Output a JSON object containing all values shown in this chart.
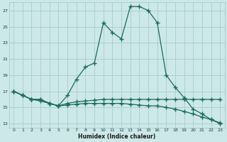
{
  "xlabel": "Humidex (Indice chaleur)",
  "bg_color": "#cce8e8",
  "grid_color": "#aacccc",
  "line_color": "#1a6b5a",
  "xlim": [
    -0.5,
    23.5
  ],
  "ylim": [
    12.5,
    28.0
  ],
  "yticks": [
    13,
    15,
    17,
    19,
    21,
    23,
    25,
    27
  ],
  "xticks": [
    0,
    1,
    2,
    3,
    4,
    5,
    6,
    7,
    8,
    9,
    10,
    11,
    12,
    13,
    14,
    15,
    16,
    17,
    18,
    19,
    20,
    21,
    22,
    23
  ],
  "line1_x": [
    0,
    1,
    2,
    3,
    4,
    5,
    6,
    7,
    8,
    9,
    10,
    11,
    12,
    13,
    14,
    15,
    16,
    17,
    18,
    19,
    20,
    21,
    22,
    23
  ],
  "line1_y": [
    17.0,
    16.5,
    16.0,
    16.0,
    15.5,
    15.2,
    16.5,
    18.5,
    20.0,
    20.5,
    25.5,
    24.3,
    23.5,
    27.5,
    27.5,
    27.0,
    25.5,
    19.0,
    17.5,
    16.2,
    14.8,
    14.2,
    13.5,
    13.0
  ],
  "line2_x": [
    0,
    1,
    2,
    3,
    4,
    5,
    6,
    7,
    8,
    9,
    10,
    11,
    12,
    13,
    14,
    15,
    16,
    17,
    18,
    19,
    20,
    21,
    22,
    23
  ],
  "line2_y": [
    17.0,
    16.5,
    16.0,
    16.0,
    15.5,
    15.2,
    15.5,
    15.7,
    15.8,
    15.9,
    16.0,
    16.0,
    16.0,
    16.0,
    16.0,
    16.0,
    16.0,
    16.0,
    16.0,
    16.0,
    16.0,
    16.0,
    16.0,
    16.0
  ],
  "line3_x": [
    0,
    1,
    2,
    3,
    4,
    5,
    6,
    7,
    8,
    9,
    10,
    11,
    12,
    13,
    14,
    15,
    16,
    17,
    18,
    19,
    20,
    21,
    22,
    23
  ],
  "line3_y": [
    17.0,
    16.5,
    16.0,
    15.8,
    15.5,
    15.2,
    15.3,
    15.4,
    15.5,
    15.5,
    15.5,
    15.5,
    15.5,
    15.4,
    15.3,
    15.2,
    15.2,
    15.0,
    14.8,
    14.5,
    14.2,
    13.8,
    13.5,
    13.1
  ]
}
